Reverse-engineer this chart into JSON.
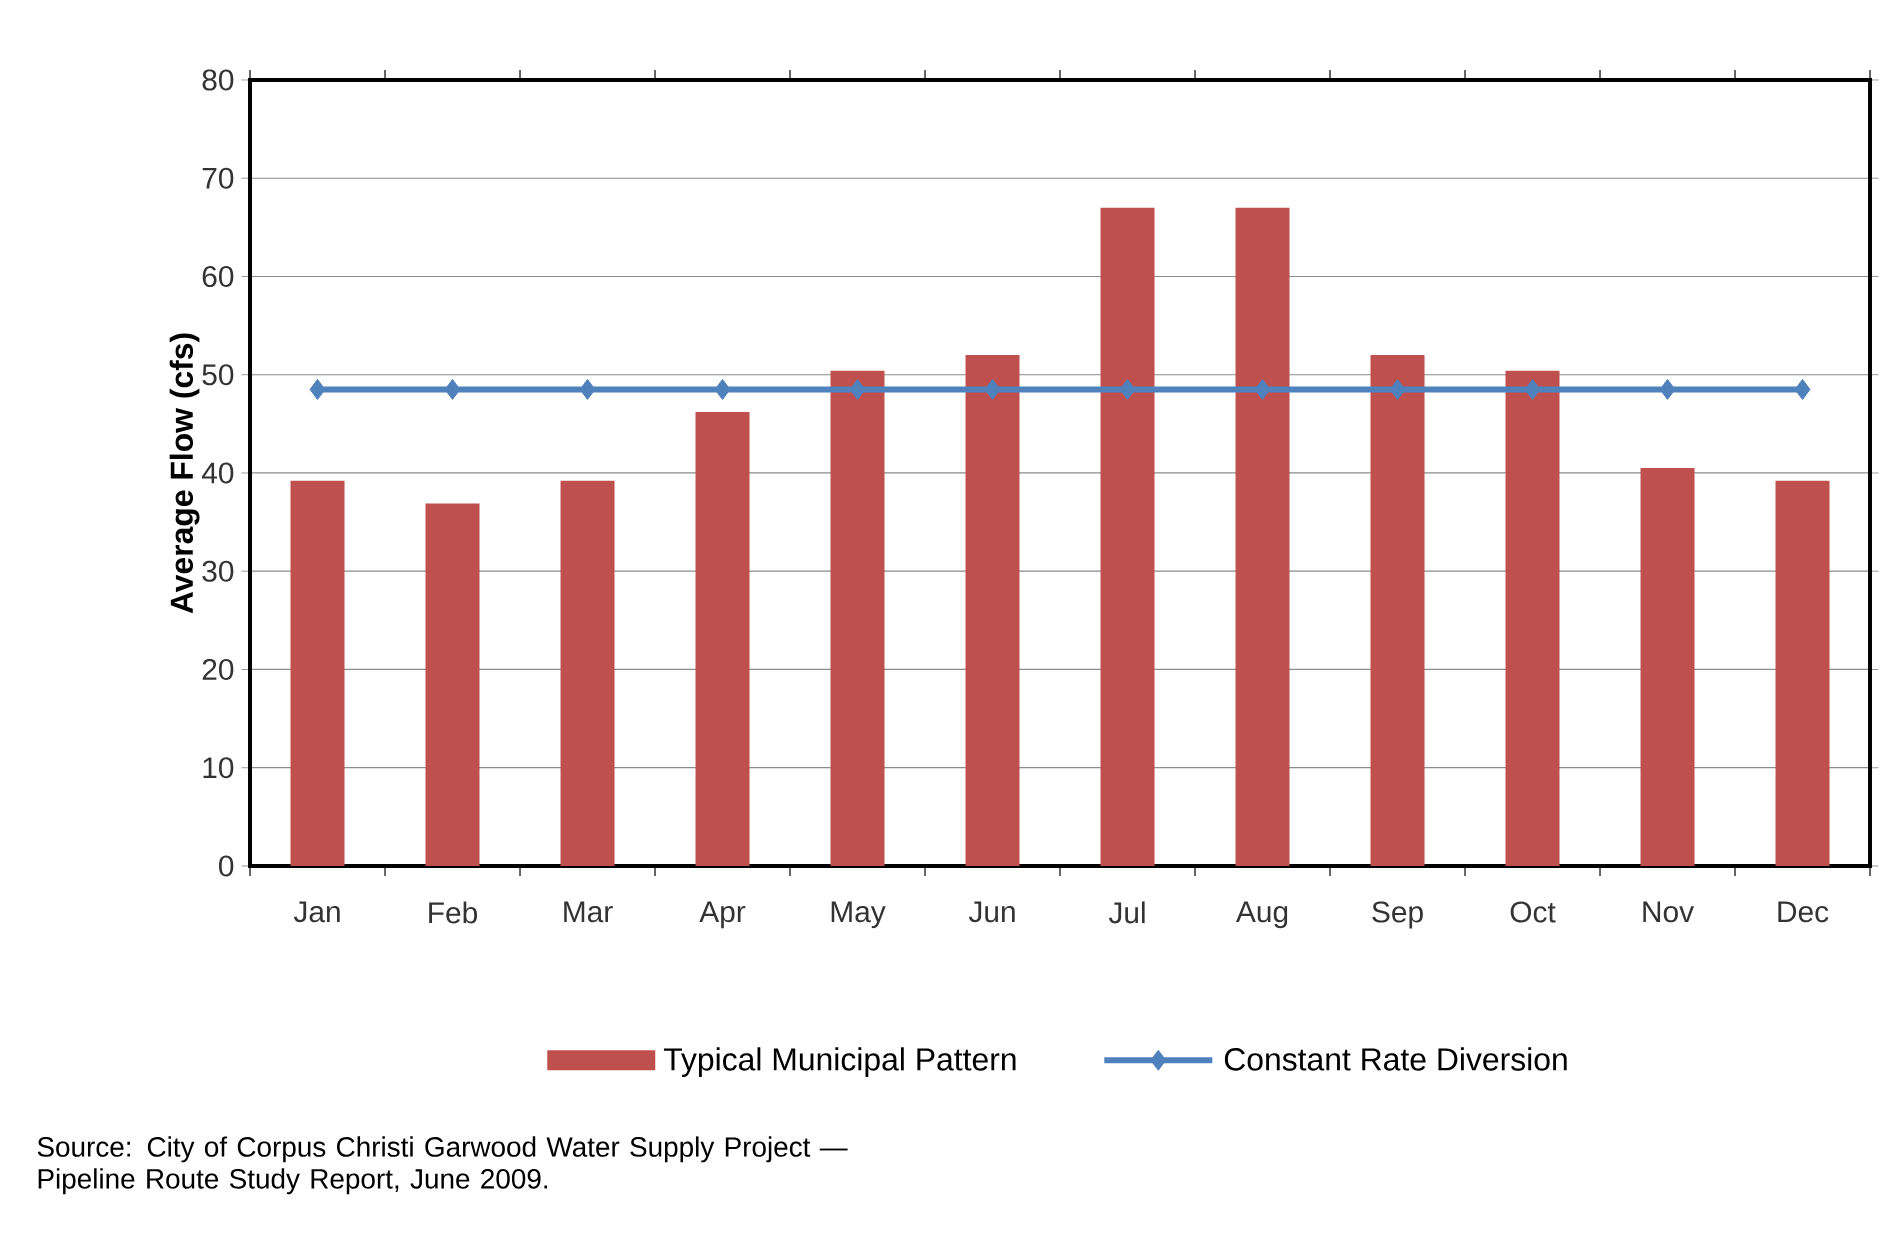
{
  "chart_data": {
    "type": "bar",
    "ylabel": "Average Flow (cfs)",
    "categories": [
      "Jan",
      "Feb",
      "Mar",
      "Apr",
      "May",
      "Jun",
      "Jul",
      "Aug",
      "Sep",
      "Oct",
      "Nov",
      "Dec"
    ],
    "series": [
      {
        "name": "Typical Municipal Pattern",
        "color": "#c0504d",
        "values": [
          39.2,
          36.9,
          39.2,
          46.2,
          50.4,
          52.0,
          67.0,
          67.0,
          52.0,
          50.4,
          40.5,
          39.2
        ]
      },
      {
        "name": "Constant Rate Diversion",
        "type": "line",
        "color": "#4f81bd",
        "marker": "diamond",
        "values": [
          48.5,
          48.5,
          48.5,
          48.5,
          48.5,
          48.5,
          48.5,
          48.5,
          48.5,
          48.5,
          48.5,
          48.5
        ]
      }
    ],
    "ylim": [
      0,
      80
    ],
    "yticks": [
      0,
      10,
      20,
      30,
      40,
      50,
      60,
      70,
      80
    ],
    "grid": "y",
    "legend": "bottom",
    "annotations": [
      "Source:  City of Corpus Christi Garwood Water Supply Project — Pipeline Route Study Report, June 2009."
    ]
  }
}
